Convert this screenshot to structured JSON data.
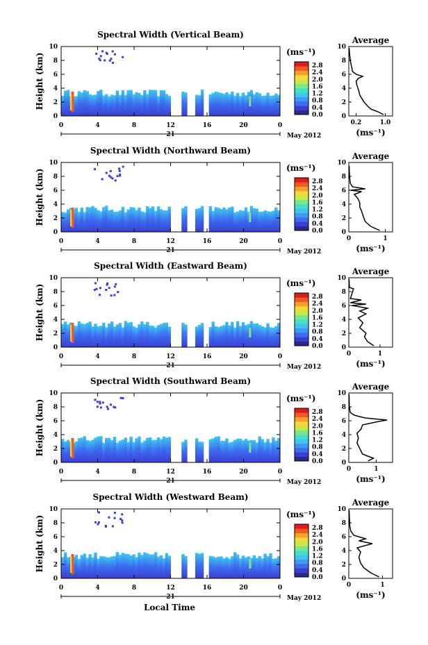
{
  "figure": {
    "xlabel": "Local Time",
    "date_day": "21",
    "date_label": "May 2012",
    "avg_title": "Average",
    "colorbar_unit": "(ms⁻¹)",
    "avg_xlabel": "(ms⁻¹)"
  },
  "colors": {
    "scale": [
      "#2a2a8a",
      "#3a3fd0",
      "#3d6cf0",
      "#3d9af5",
      "#3ec6f0",
      "#46e0c8",
      "#7be68a",
      "#c8e84a",
      "#f7d83a",
      "#f6a02a",
      "#ee5a22",
      "#d81e1e"
    ]
  },
  "chart_data": [
    {
      "type": "heatmap",
      "title": "Spectral Width (Vertical Beam)",
      "ylabel": "Height (km)",
      "xlim": [
        0,
        24
      ],
      "ylim": [
        0,
        10
      ],
      "x_ticks": [
        "0",
        "4",
        "8",
        "12",
        "16",
        "20",
        "0"
      ],
      "y_ticks": [
        "0",
        "2",
        "4",
        "6",
        "8",
        "10"
      ],
      "colorbar": {
        "ticks": [
          "0.0",
          "0.4",
          "0.8",
          "1.2",
          "1.6",
          "2.0",
          "2.4",
          "2.8"
        ],
        "range": [
          0,
          3.0
        ]
      },
      "profile": {
        "xlim": [
          0,
          1.2
        ],
        "x_ticks": [
          "0.2",
          "1.0"
        ],
        "x_tick_values": [
          0.2,
          1.0
        ],
        "points": [
          [
            0.95,
            0.2
          ],
          [
            0.8,
            0.6
          ],
          [
            0.6,
            1.0
          ],
          [
            0.5,
            1.5
          ],
          [
            0.42,
            2.0
          ],
          [
            0.36,
            2.5
          ],
          [
            0.3,
            3.0
          ],
          [
            0.28,
            3.5
          ],
          [
            0.25,
            4.0
          ],
          [
            0.22,
            4.5
          ],
          [
            0.2,
            5.0
          ],
          [
            0.26,
            5.4
          ],
          [
            0.38,
            5.7
          ],
          [
            0.2,
            6.0
          ],
          [
            0.1,
            6.4
          ],
          [
            0.08,
            7.0
          ],
          [
            0.06,
            7.5
          ],
          [
            0.04,
            8.0
          ],
          [
            0.02,
            9.0
          ],
          [
            0.01,
            9.8
          ]
        ]
      }
    },
    {
      "type": "heatmap",
      "title": "Spectral Width (Northward Beam)",
      "ylabel": "Height (km)",
      "xlim": [
        0,
        24
      ],
      "ylim": [
        0,
        10
      ],
      "x_ticks": [
        "0",
        "4",
        "8",
        "12",
        "16",
        "20",
        "0"
      ],
      "y_ticks": [
        "0",
        "2",
        "4",
        "6",
        "8",
        "10"
      ],
      "colorbar": {
        "ticks": [
          "0.0",
          "0.4",
          "0.8",
          "1.2",
          "1.6",
          "2.0",
          "2.4",
          "2.8"
        ],
        "range": [
          0,
          3.0
        ]
      },
      "profile": {
        "xlim": [
          0,
          1.2
        ],
        "x_ticks": [
          "0",
          "1"
        ],
        "x_tick_values": [
          0,
          1.0
        ],
        "points": [
          [
            0.85,
            0.2
          ],
          [
            0.6,
            0.8
          ],
          [
            0.45,
            1.5
          ],
          [
            0.4,
            2.2
          ],
          [
            0.35,
            3.0
          ],
          [
            0.3,
            3.6
          ],
          [
            0.3,
            4.2
          ],
          [
            0.25,
            4.8
          ],
          [
            0.15,
            5.4
          ],
          [
            0.35,
            5.8
          ],
          [
            0.05,
            6.0
          ],
          [
            0.45,
            6.2
          ],
          [
            0.1,
            6.5
          ],
          [
            0.04,
            7.0
          ],
          [
            0.02,
            8.0
          ],
          [
            0.01,
            9.5
          ]
        ]
      }
    },
    {
      "type": "heatmap",
      "title": "Spectral Width (Eastward Beam)",
      "ylabel": "Height (km)",
      "xlim": [
        0,
        24
      ],
      "ylim": [
        0,
        10
      ],
      "x_ticks": [
        "0",
        "4",
        "8",
        "12",
        "16",
        "20",
        "0"
      ],
      "y_ticks": [
        "0",
        "2",
        "4",
        "6",
        "8",
        "10"
      ],
      "colorbar": {
        "ticks": [
          "0.0",
          "0.4",
          "0.8",
          "1.2",
          "1.6",
          "2.0",
          "2.4",
          "2.8"
        ],
        "range": [
          0,
          3.0
        ]
      },
      "profile": {
        "xlim": [
          0,
          1.4
        ],
        "x_ticks": [
          "0",
          "1"
        ],
        "x_tick_values": [
          0,
          1.0
        ],
        "points": [
          [
            0.8,
            0.2
          ],
          [
            0.6,
            0.8
          ],
          [
            0.5,
            1.5
          ],
          [
            0.55,
            2.0
          ],
          [
            0.35,
            2.8
          ],
          [
            0.45,
            3.5
          ],
          [
            0.3,
            4.2
          ],
          [
            0.55,
            4.8
          ],
          [
            0.35,
            5.2
          ],
          [
            0.6,
            5.6
          ],
          [
            0.1,
            6.0
          ],
          [
            0.55,
            6.2
          ],
          [
            0.05,
            6.4
          ],
          [
            0.4,
            6.8
          ],
          [
            0.05,
            7.0
          ],
          [
            0.15,
            8.4
          ],
          [
            0.02,
            8.6
          ],
          [
            0.01,
            9.8
          ]
        ]
      }
    },
    {
      "type": "heatmap",
      "title": "Spectral Width (Southward Beam)",
      "ylabel": "Height (km)",
      "xlim": [
        0,
        24
      ],
      "ylim": [
        0,
        10
      ],
      "x_ticks": [
        "0",
        "4",
        "8",
        "12",
        "16",
        "20",
        "0"
      ],
      "y_ticks": [
        "0",
        "2",
        "4",
        "6",
        "8",
        "10"
      ],
      "colorbar": {
        "ticks": [
          "0.0",
          "0.4",
          "0.8",
          "1.2",
          "1.6",
          "2.0",
          "2.4",
          "2.8"
        ],
        "range": [
          0,
          3.0
        ]
      },
      "profile": {
        "xlim": [
          0,
          1.6
        ],
        "x_ticks": [
          "0",
          "1"
        ],
        "x_tick_values": [
          0,
          1.0
        ],
        "points": [
          [
            0.7,
            0.2
          ],
          [
            0.9,
            0.6
          ],
          [
            0.5,
            1.2
          ],
          [
            0.4,
            2.0
          ],
          [
            0.3,
            2.8
          ],
          [
            0.35,
            3.5
          ],
          [
            0.3,
            4.2
          ],
          [
            0.45,
            4.8
          ],
          [
            0.5,
            5.4
          ],
          [
            1.1,
            5.9
          ],
          [
            1.4,
            6.1
          ],
          [
            0.6,
            6.4
          ],
          [
            0.2,
            6.8
          ],
          [
            0.05,
            7.2
          ],
          [
            0.02,
            8.0
          ],
          [
            0.01,
            9.8
          ]
        ]
      }
    },
    {
      "type": "heatmap",
      "title": "Spectral Width (Westward Beam)",
      "ylabel": "Height (km)",
      "xlim": [
        0,
        24
      ],
      "ylim": [
        0,
        10
      ],
      "x_ticks": [
        "0",
        "4",
        "8",
        "12",
        "16",
        "20",
        "0"
      ],
      "y_ticks": [
        "0",
        "2",
        "4",
        "6",
        "8",
        "10"
      ],
      "colorbar": {
        "ticks": [
          "0.0",
          "0.4",
          "0.8",
          "1.2",
          "1.6",
          "2.0",
          "2.4",
          "2.8"
        ],
        "range": [
          0,
          3.0
        ]
      },
      "profile": {
        "xlim": [
          0,
          1.3
        ],
        "x_ticks": [
          "0",
          "1"
        ],
        "x_tick_values": [
          0,
          1.0
        ],
        "points": [
          [
            0.9,
            0.2
          ],
          [
            0.65,
            0.8
          ],
          [
            0.45,
            1.5
          ],
          [
            0.35,
            2.2
          ],
          [
            0.3,
            3.0
          ],
          [
            0.35,
            3.8
          ],
          [
            0.25,
            4.4
          ],
          [
            0.7,
            5.0
          ],
          [
            0.3,
            5.4
          ],
          [
            0.5,
            5.7
          ],
          [
            0.15,
            6.2
          ],
          [
            0.06,
            6.8
          ],
          [
            0.03,
            7.5
          ],
          [
            0.02,
            8.5
          ],
          [
            0.01,
            9.8
          ]
        ]
      }
    }
  ]
}
